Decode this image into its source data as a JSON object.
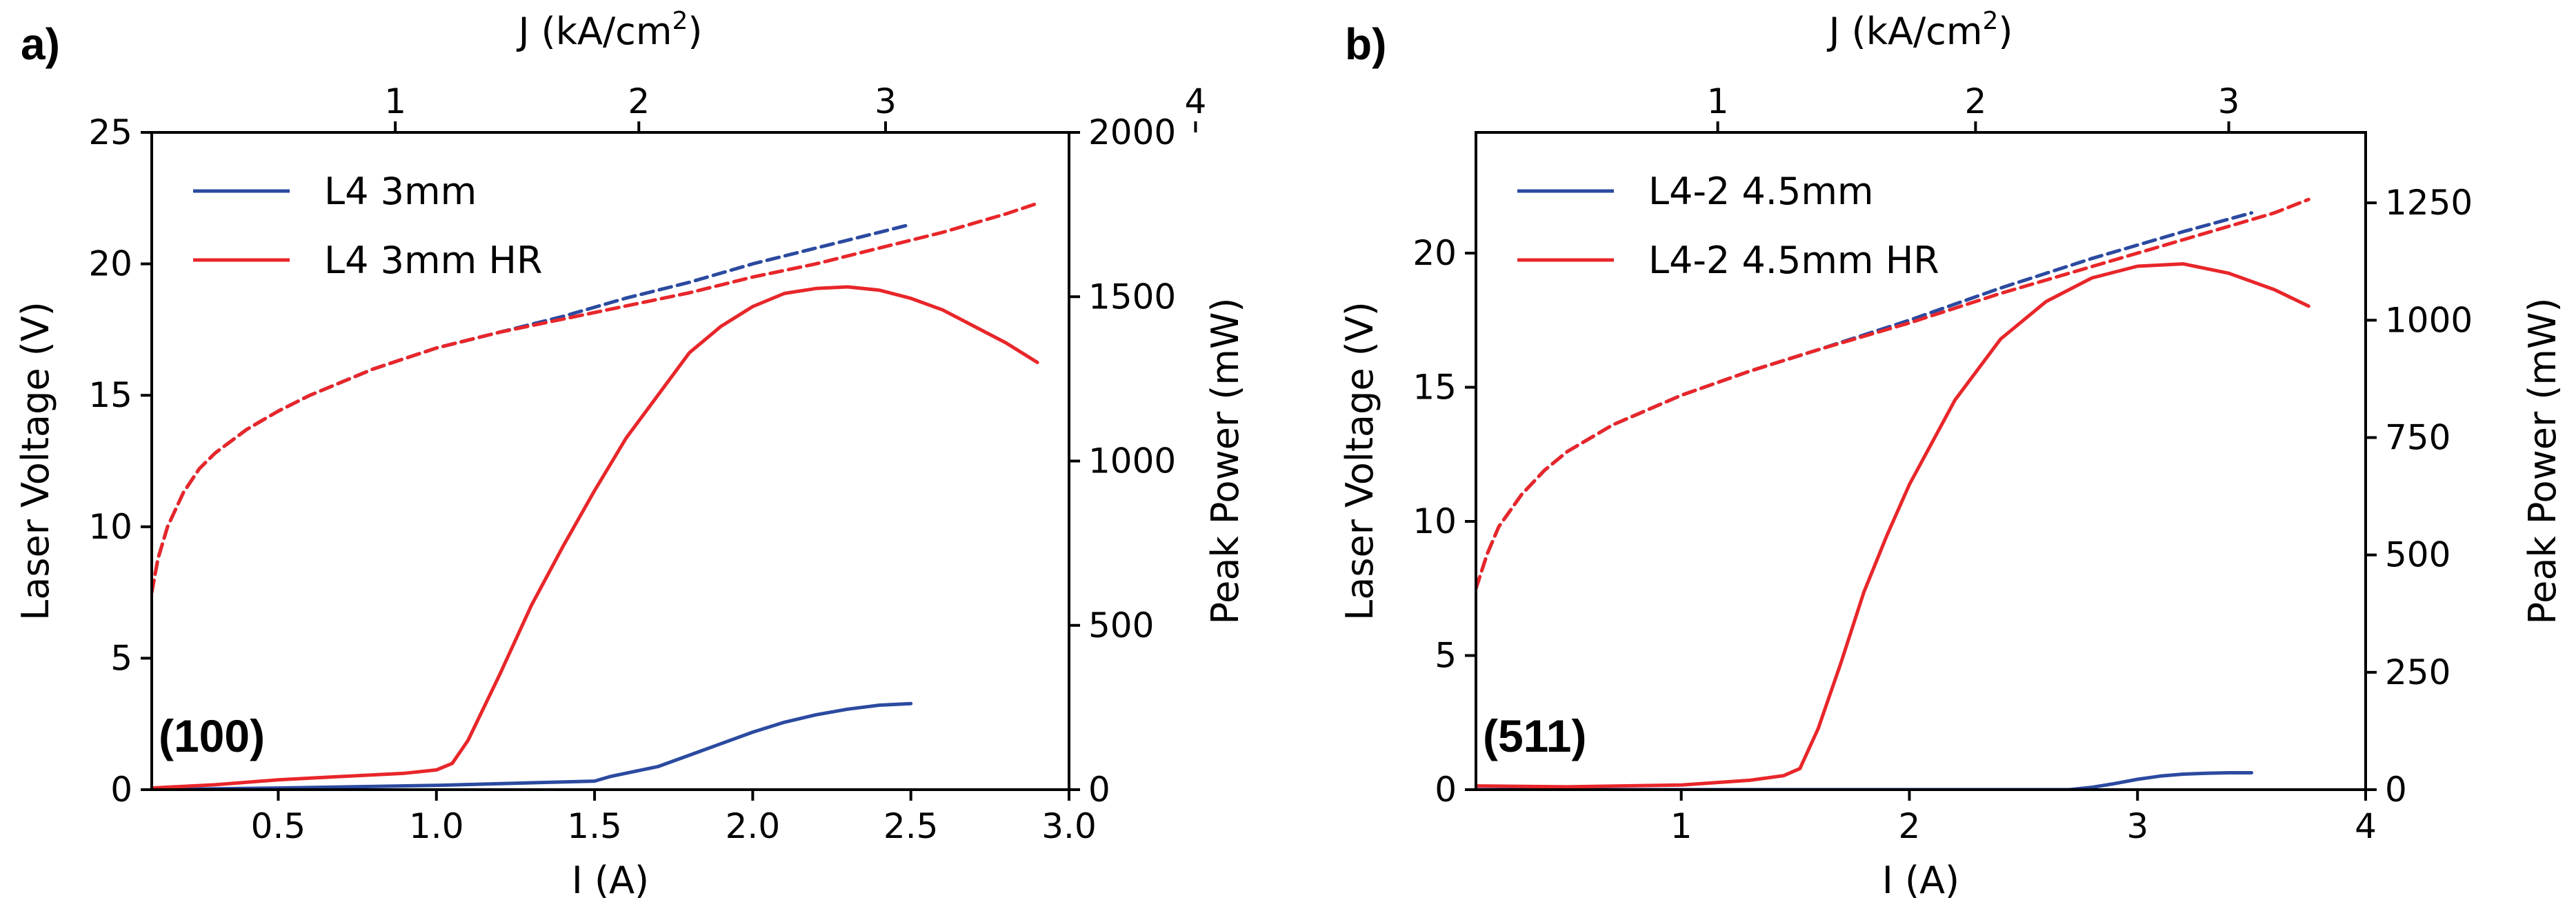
{
  "chart_data": [
    {
      "type": "line",
      "panel_label": "a)",
      "annotation": "(100)",
      "xlabel": "I (A)",
      "ylabel": "Laser Voltage (V)",
      "ylabel_right": "Peak Power (mW)",
      "xlabel_top": "J (kA/cm",
      "xlabel_top_sup": "2",
      "xlabel_top_suffix": ")",
      "xlim": [
        0.1,
        3.0
      ],
      "ylim": [
        0,
        25
      ],
      "ylim_right": [
        0,
        2000
      ],
      "xticks": [
        0.5,
        1.0,
        1.5,
        2.0,
        2.5,
        3.0
      ],
      "xtick_labels": [
        "0.5",
        "1.0",
        "1.5",
        "2.0",
        "2.5",
        "3.0"
      ],
      "yticks": [
        0,
        5,
        10,
        15,
        20,
        25
      ],
      "ytick_labels": [
        "0",
        "5",
        "10",
        "15",
        "20",
        "25"
      ],
      "yticks_right": [
        0,
        500,
        1000,
        1500,
        2000
      ],
      "ytick_labels_right": [
        "0",
        "500",
        "1000",
        "1500",
        "2000"
      ],
      "top_ticks": [
        {
          "j": 1,
          "i": 0.87
        },
        {
          "j": 2,
          "i": 1.64
        },
        {
          "j": 3,
          "i": 2.42
        },
        {
          "j": 4,
          "i": 3.4
        }
      ],
      "top_tick_labels": [
        "1",
        "2",
        "3",
        "4"
      ],
      "legend_position": "upper-left",
      "series": [
        {
          "name": "L4 3mm",
          "color": "#2b4aa0",
          "quantity": "voltage",
          "axis": "left",
          "dash": true,
          "x": [
            0.1,
            0.12,
            0.15,
            0.2,
            0.25,
            0.3,
            0.4,
            0.5,
            0.6,
            0.7,
            0.8,
            0.9,
            1.0,
            1.2,
            1.4,
            1.6,
            1.8,
            2.0,
            2.2,
            2.4,
            2.5
          ],
          "y": [
            7.5,
            8.8,
            10.0,
            11.3,
            12.2,
            12.8,
            13.7,
            14.4,
            15.0,
            15.5,
            16.0,
            16.4,
            16.8,
            17.4,
            18.0,
            18.7,
            19.3,
            20.0,
            20.6,
            21.2,
            21.5
          ]
        },
        {
          "name": "L4 3mm HR",
          "color": "#e8262a",
          "quantity": "voltage",
          "axis": "left",
          "dash": true,
          "x": [
            0.1,
            0.12,
            0.15,
            0.2,
            0.25,
            0.3,
            0.4,
            0.5,
            0.6,
            0.7,
            0.8,
            0.9,
            1.0,
            1.2,
            1.4,
            1.6,
            1.8,
            2.0,
            2.2,
            2.4,
            2.6,
            2.8,
            2.9
          ],
          "y": [
            7.5,
            8.8,
            10.0,
            11.3,
            12.2,
            12.8,
            13.7,
            14.4,
            15.0,
            15.5,
            16.0,
            16.4,
            16.8,
            17.4,
            17.9,
            18.4,
            18.9,
            19.5,
            20.0,
            20.6,
            21.2,
            21.9,
            22.3
          ]
        },
        {
          "name": "L4 3mm",
          "color": "#2b4aa0",
          "quantity": "power",
          "axis": "right",
          "dash": false,
          "x": [
            0.1,
            0.5,
            1.0,
            1.5,
            1.55,
            1.7,
            1.8,
            1.9,
            2.0,
            2.1,
            2.2,
            2.3,
            2.4,
            2.5
          ],
          "y": [
            0,
            5,
            13,
            26,
            40,
            70,
            105,
            140,
            175,
            205,
            228,
            245,
            257,
            262
          ]
        },
        {
          "name": "L4 3mm HR",
          "color": "#e8262a",
          "quantity": "power",
          "axis": "right",
          "dash": false,
          "x": [
            0.1,
            0.3,
            0.5,
            0.7,
            0.9,
            1.0,
            1.05,
            1.1,
            1.2,
            1.3,
            1.4,
            1.5,
            1.6,
            1.7,
            1.8,
            1.9,
            2.0,
            2.1,
            2.2,
            2.3,
            2.4,
            2.5,
            2.6,
            2.7,
            2.8,
            2.9
          ],
          "y": [
            5,
            15,
            30,
            40,
            50,
            60,
            80,
            150,
            350,
            560,
            740,
            910,
            1070,
            1200,
            1330,
            1410,
            1470,
            1510,
            1525,
            1530,
            1520,
            1495,
            1460,
            1410,
            1360,
            1300
          ]
        }
      ]
    },
    {
      "type": "line",
      "panel_label": "b)",
      "annotation": "(511)",
      "xlabel": "I (A)",
      "ylabel": "Laser Voltage (V)",
      "ylabel_right": "Peak Power (mW)",
      "xlabel_top": "J (kA/cm",
      "xlabel_top_sup": "2",
      "xlabel_top_suffix": ")",
      "xlim": [
        0.1,
        4.0
      ],
      "ylim": [
        0,
        24.5
      ],
      "ylim_right": [
        0,
        1400
      ],
      "xticks": [
        1,
        2,
        3,
        4
      ],
      "xtick_labels": [
        "1",
        "2",
        "3",
        "4"
      ],
      "yticks": [
        0,
        5,
        10,
        15,
        20
      ],
      "ytick_labels": [
        "0",
        "5",
        "10",
        "15",
        "20"
      ],
      "yticks_right": [
        0,
        250,
        500,
        750,
        1000,
        1250
      ],
      "ytick_labels_right": [
        "0",
        "250",
        "500",
        "750",
        "1000",
        "1250"
      ],
      "top_ticks": [
        {
          "j": 1,
          "i": 1.16
        },
        {
          "j": 2,
          "i": 2.29
        },
        {
          "j": 3,
          "i": 3.4
        }
      ],
      "top_tick_labels": [
        "1",
        "2",
        "3"
      ],
      "legend_position": "upper-left",
      "series": [
        {
          "name": "L4-2 4.5mm",
          "color": "#2b4aa0",
          "quantity": "voltage",
          "axis": "left",
          "dash": true,
          "x": [
            0.1,
            0.15,
            0.2,
            0.3,
            0.4,
            0.5,
            0.7,
            1.0,
            1.3,
            1.6,
            2.0,
            2.4,
            2.8,
            3.2,
            3.5
          ],
          "y": [
            7.5,
            8.8,
            9.8,
            11.0,
            11.9,
            12.6,
            13.6,
            14.7,
            15.6,
            16.4,
            17.5,
            18.7,
            19.8,
            20.8,
            21.5
          ]
        },
        {
          "name": "L4-2 4.5mm HR",
          "color": "#e8262a",
          "quantity": "voltage",
          "axis": "left",
          "dash": true,
          "x": [
            0.1,
            0.15,
            0.2,
            0.3,
            0.4,
            0.5,
            0.7,
            1.0,
            1.3,
            1.6,
            2.0,
            2.4,
            2.8,
            3.2,
            3.6,
            3.75
          ],
          "y": [
            7.5,
            8.8,
            9.8,
            11.0,
            11.9,
            12.6,
            13.6,
            14.7,
            15.6,
            16.4,
            17.4,
            18.5,
            19.5,
            20.5,
            21.5,
            22.0
          ]
        },
        {
          "name": "L4-2 4.5mm",
          "color": "#2b4aa0",
          "quantity": "power",
          "axis": "right",
          "dash": false,
          "x": [
            0.1,
            1.0,
            2.0,
            2.7,
            2.8,
            2.9,
            3.0,
            3.1,
            3.2,
            3.3,
            3.4,
            3.5
          ],
          "y": [
            0,
            0,
            0,
            0,
            5,
            13,
            22,
            29,
            33,
            35,
            36,
            36
          ]
        },
        {
          "name": "L4-2 4.5mm HR",
          "color": "#e8262a",
          "quantity": "power",
          "axis": "right",
          "dash": false,
          "x": [
            0.1,
            0.5,
            1.0,
            1.3,
            1.45,
            1.52,
            1.6,
            1.7,
            1.8,
            1.9,
            2.0,
            2.2,
            2.4,
            2.6,
            2.8,
            3.0,
            3.2,
            3.4,
            3.6,
            3.75
          ],
          "y": [
            8,
            6,
            10,
            20,
            30,
            45,
            130,
            270,
            420,
            540,
            650,
            830,
            960,
            1040,
            1090,
            1115,
            1120,
            1100,
            1065,
            1030
          ]
        }
      ]
    }
  ]
}
